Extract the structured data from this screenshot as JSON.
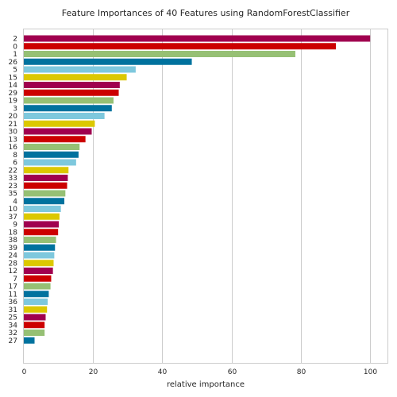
{
  "chart_data": {
    "type": "bar",
    "orientation": "horizontal",
    "title": "Feature Importances of 40 Features using RandomForestClassifier",
    "xlabel": "relative importance",
    "ylabel": "",
    "xlim": [
      0,
      105
    ],
    "x_ticks": [
      0,
      20,
      40,
      60,
      80,
      100
    ],
    "grid": true,
    "legend": "none",
    "colors": [
      "#a0004f",
      "#cc0000",
      "#96c074",
      "#00729e",
      "#7ec8dd",
      "#dcc800"
    ],
    "categories": [
      "2",
      "0",
      "1",
      "26",
      "5",
      "15",
      "14",
      "29",
      "19",
      "3",
      "20",
      "21",
      "30",
      "13",
      "16",
      "8",
      "6",
      "22",
      "33",
      "23",
      "35",
      "4",
      "10",
      "37",
      "9",
      "18",
      "38",
      "39",
      "24",
      "28",
      "12",
      "7",
      "17",
      "11",
      "36",
      "31",
      "25",
      "34",
      "32",
      "27"
    ],
    "values": [
      100,
      90.1,
      78.4,
      48.5,
      32.3,
      29.7,
      27.7,
      27.4,
      25.9,
      25.4,
      23.3,
      20.5,
      19.6,
      17.8,
      16.1,
      15.8,
      15.1,
      12.9,
      12.7,
      12.5,
      12.0,
      11.7,
      10.7,
      10.3,
      10.1,
      9.9,
      9.3,
      9.0,
      8.8,
      8.6,
      8.4,
      7.9,
      7.7,
      7.2,
      6.9,
      6.7,
      6.3,
      6.0,
      6.0,
      3.1
    ]
  }
}
